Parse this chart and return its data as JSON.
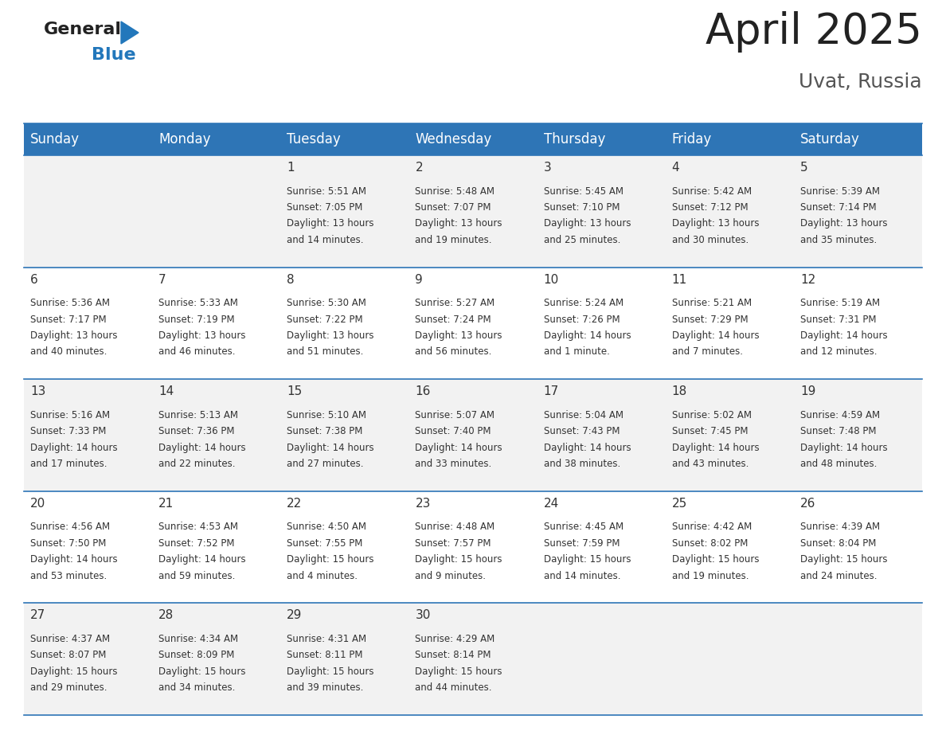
{
  "title": "April 2025",
  "subtitle": "Uvat, Russia",
  "header_bg_color": "#2E75B6",
  "header_text_color": "#FFFFFF",
  "day_names": [
    "Sunday",
    "Monday",
    "Tuesday",
    "Wednesday",
    "Thursday",
    "Friday",
    "Saturday"
  ],
  "row_bg_colors": [
    "#F2F2F2",
    "#FFFFFF",
    "#F2F2F2",
    "#FFFFFF",
    "#F2F2F2"
  ],
  "cell_border_color": "#2E75B6",
  "number_color": "#333333",
  "text_color": "#333333",
  "title_color": "#222222",
  "subtitle_color": "#555555",
  "logo_general_color": "#222222",
  "logo_blue_color": "#2277BB",
  "logo_triangle_color": "#2277BB",
  "days": [
    {
      "day": 1,
      "col": 2,
      "row": 0,
      "sunrise": "5:51 AM",
      "sunset": "7:05 PM",
      "daylight_hours": 13,
      "daylight_minutes": 14
    },
    {
      "day": 2,
      "col": 3,
      "row": 0,
      "sunrise": "5:48 AM",
      "sunset": "7:07 PM",
      "daylight_hours": 13,
      "daylight_minutes": 19
    },
    {
      "day": 3,
      "col": 4,
      "row": 0,
      "sunrise": "5:45 AM",
      "sunset": "7:10 PM",
      "daylight_hours": 13,
      "daylight_minutes": 25
    },
    {
      "day": 4,
      "col": 5,
      "row": 0,
      "sunrise": "5:42 AM",
      "sunset": "7:12 PM",
      "daylight_hours": 13,
      "daylight_minutes": 30
    },
    {
      "day": 5,
      "col": 6,
      "row": 0,
      "sunrise": "5:39 AM",
      "sunset": "7:14 PM",
      "daylight_hours": 13,
      "daylight_minutes": 35
    },
    {
      "day": 6,
      "col": 0,
      "row": 1,
      "sunrise": "5:36 AM",
      "sunset": "7:17 PM",
      "daylight_hours": 13,
      "daylight_minutes": 40
    },
    {
      "day": 7,
      "col": 1,
      "row": 1,
      "sunrise": "5:33 AM",
      "sunset": "7:19 PM",
      "daylight_hours": 13,
      "daylight_minutes": 46
    },
    {
      "day": 8,
      "col": 2,
      "row": 1,
      "sunrise": "5:30 AM",
      "sunset": "7:22 PM",
      "daylight_hours": 13,
      "daylight_minutes": 51
    },
    {
      "day": 9,
      "col": 3,
      "row": 1,
      "sunrise": "5:27 AM",
      "sunset": "7:24 PM",
      "daylight_hours": 13,
      "daylight_minutes": 56
    },
    {
      "day": 10,
      "col": 4,
      "row": 1,
      "sunrise": "5:24 AM",
      "sunset": "7:26 PM",
      "daylight_hours": 14,
      "daylight_minutes": 1
    },
    {
      "day": 11,
      "col": 5,
      "row": 1,
      "sunrise": "5:21 AM",
      "sunset": "7:29 PM",
      "daylight_hours": 14,
      "daylight_minutes": 7
    },
    {
      "day": 12,
      "col": 6,
      "row": 1,
      "sunrise": "5:19 AM",
      "sunset": "7:31 PM",
      "daylight_hours": 14,
      "daylight_minutes": 12
    },
    {
      "day": 13,
      "col": 0,
      "row": 2,
      "sunrise": "5:16 AM",
      "sunset": "7:33 PM",
      "daylight_hours": 14,
      "daylight_minutes": 17
    },
    {
      "day": 14,
      "col": 1,
      "row": 2,
      "sunrise": "5:13 AM",
      "sunset": "7:36 PM",
      "daylight_hours": 14,
      "daylight_minutes": 22
    },
    {
      "day": 15,
      "col": 2,
      "row": 2,
      "sunrise": "5:10 AM",
      "sunset": "7:38 PM",
      "daylight_hours": 14,
      "daylight_minutes": 27
    },
    {
      "day": 16,
      "col": 3,
      "row": 2,
      "sunrise": "5:07 AM",
      "sunset": "7:40 PM",
      "daylight_hours": 14,
      "daylight_minutes": 33
    },
    {
      "day": 17,
      "col": 4,
      "row": 2,
      "sunrise": "5:04 AM",
      "sunset": "7:43 PM",
      "daylight_hours": 14,
      "daylight_minutes": 38
    },
    {
      "day": 18,
      "col": 5,
      "row": 2,
      "sunrise": "5:02 AM",
      "sunset": "7:45 PM",
      "daylight_hours": 14,
      "daylight_minutes": 43
    },
    {
      "day": 19,
      "col": 6,
      "row": 2,
      "sunrise": "4:59 AM",
      "sunset": "7:48 PM",
      "daylight_hours": 14,
      "daylight_minutes": 48
    },
    {
      "day": 20,
      "col": 0,
      "row": 3,
      "sunrise": "4:56 AM",
      "sunset": "7:50 PM",
      "daylight_hours": 14,
      "daylight_minutes": 53
    },
    {
      "day": 21,
      "col": 1,
      "row": 3,
      "sunrise": "4:53 AM",
      "sunset": "7:52 PM",
      "daylight_hours": 14,
      "daylight_minutes": 59
    },
    {
      "day": 22,
      "col": 2,
      "row": 3,
      "sunrise": "4:50 AM",
      "sunset": "7:55 PM",
      "daylight_hours": 15,
      "daylight_minutes": 4
    },
    {
      "day": 23,
      "col": 3,
      "row": 3,
      "sunrise": "4:48 AM",
      "sunset": "7:57 PM",
      "daylight_hours": 15,
      "daylight_minutes": 9
    },
    {
      "day": 24,
      "col": 4,
      "row": 3,
      "sunrise": "4:45 AM",
      "sunset": "7:59 PM",
      "daylight_hours": 15,
      "daylight_minutes": 14
    },
    {
      "day": 25,
      "col": 5,
      "row": 3,
      "sunrise": "4:42 AM",
      "sunset": "8:02 PM",
      "daylight_hours": 15,
      "daylight_minutes": 19
    },
    {
      "day": 26,
      "col": 6,
      "row": 3,
      "sunrise": "4:39 AM",
      "sunset": "8:04 PM",
      "daylight_hours": 15,
      "daylight_minutes": 24
    },
    {
      "day": 27,
      "col": 0,
      "row": 4,
      "sunrise": "4:37 AM",
      "sunset": "8:07 PM",
      "daylight_hours": 15,
      "daylight_minutes": 29
    },
    {
      "day": 28,
      "col": 1,
      "row": 4,
      "sunrise": "4:34 AM",
      "sunset": "8:09 PM",
      "daylight_hours": 15,
      "daylight_minutes": 34
    },
    {
      "day": 29,
      "col": 2,
      "row": 4,
      "sunrise": "4:31 AM",
      "sunset": "8:11 PM",
      "daylight_hours": 15,
      "daylight_minutes": 39
    },
    {
      "day": 30,
      "col": 3,
      "row": 4,
      "sunrise": "4:29 AM",
      "sunset": "8:14 PM",
      "daylight_hours": 15,
      "daylight_minutes": 44
    }
  ]
}
